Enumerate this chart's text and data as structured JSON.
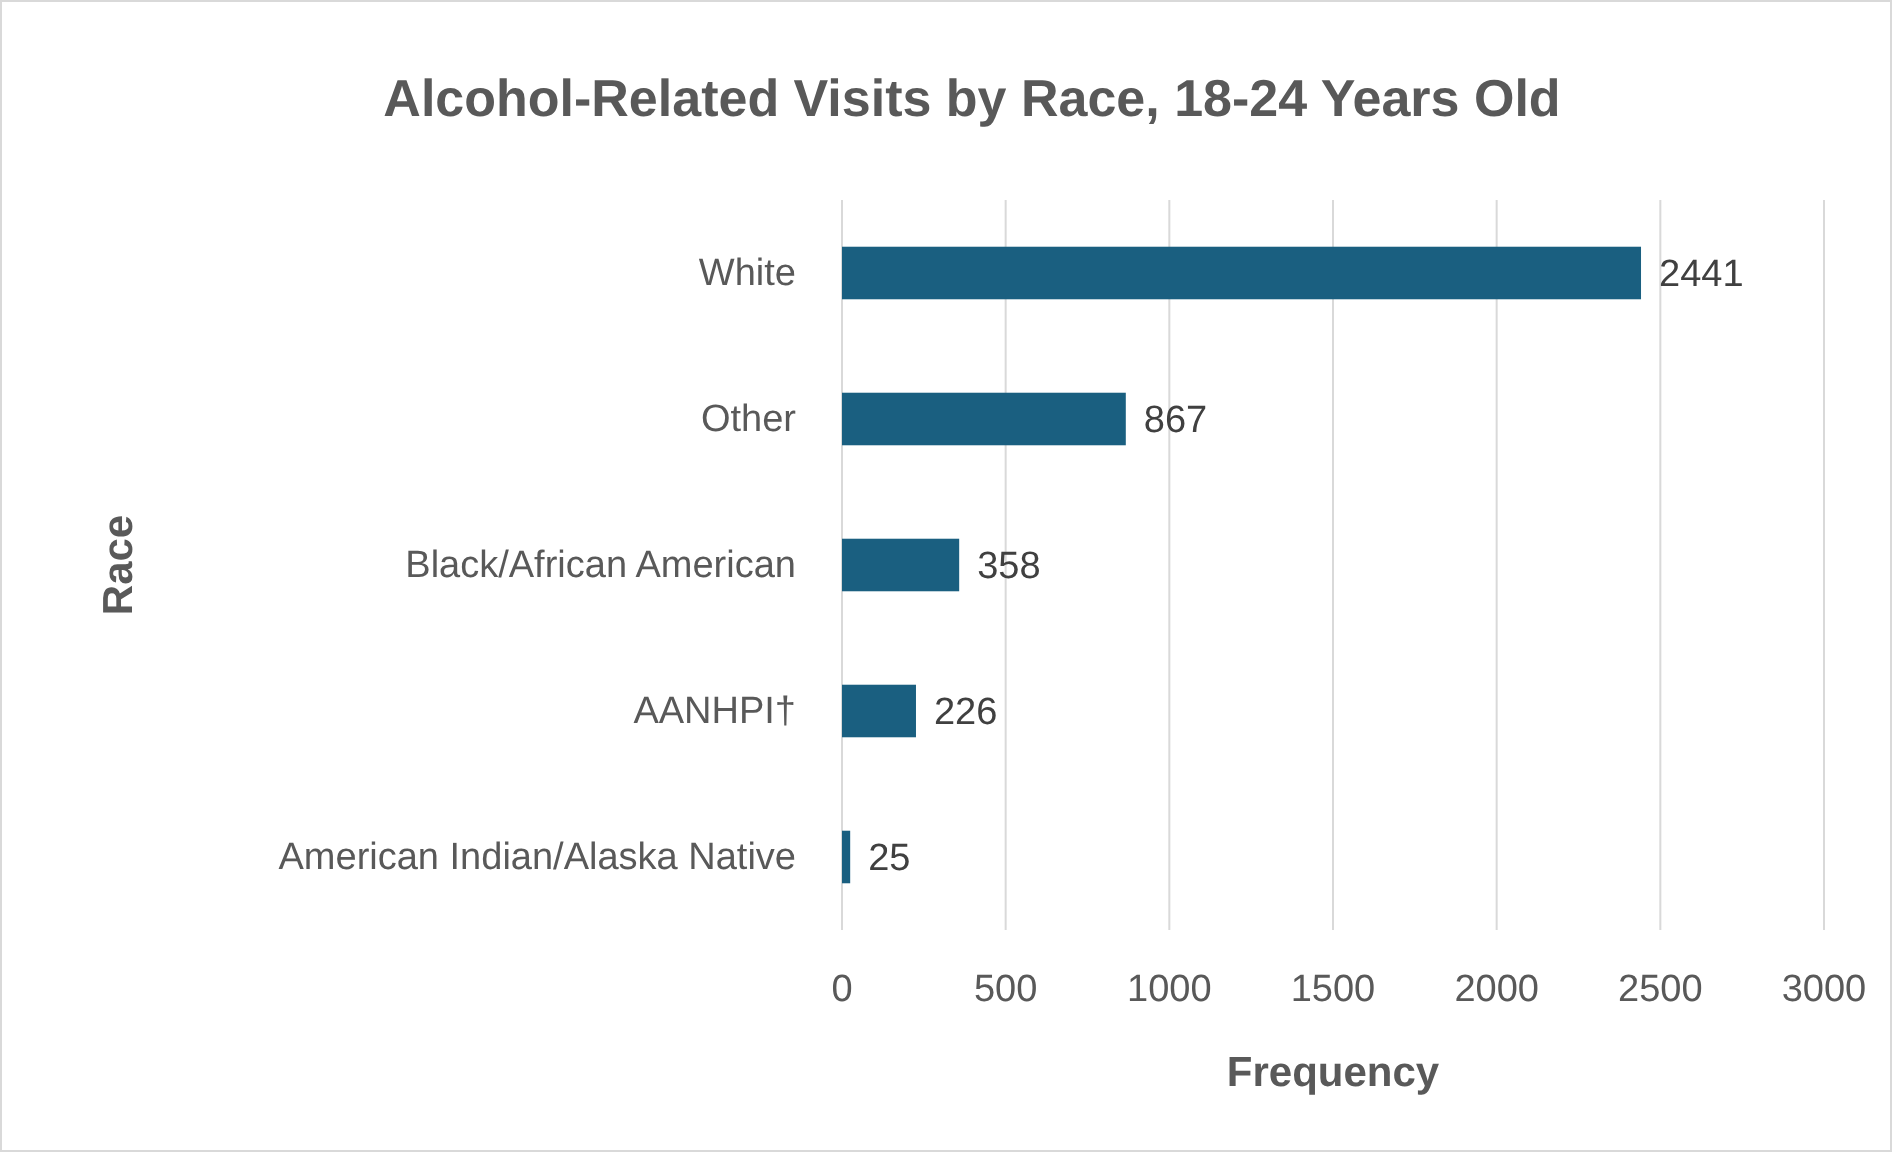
{
  "chart_data": {
    "type": "bar",
    "orientation": "horizontal",
    "title": "Alcohol-Related Visits by Race, 18-24 Years Old",
    "xlabel": "Frequency",
    "ylabel": "Race",
    "categories": [
      "White",
      "Other",
      "Black/African American",
      "AANHPI†",
      "American Indian/Alaska Native"
    ],
    "values": [
      2441,
      867,
      358,
      226,
      25
    ],
    "color": "#1a5f80",
    "xlim": [
      0,
      3000
    ],
    "xticks": [
      0,
      500,
      1000,
      1500,
      2000,
      2500,
      3000
    ],
    "grid": "x",
    "data_labels": true
  }
}
